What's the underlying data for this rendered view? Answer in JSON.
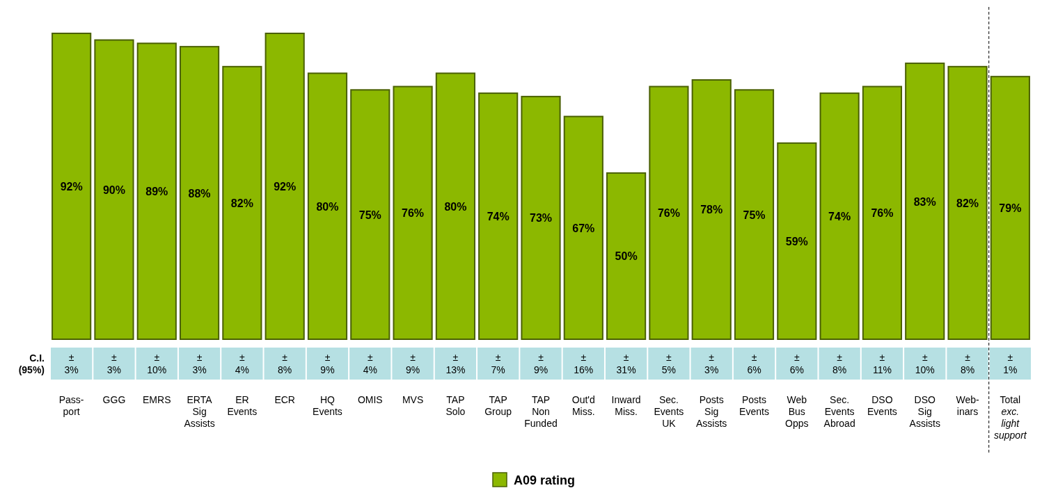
{
  "chart_data": {
    "type": "bar",
    "categories": [
      "Pass-\nport",
      "GGG",
      "EMRS",
      "ERTA\nSig\nAssists",
      "ER\nEvents",
      "ECR",
      "HQ\nEvents",
      "OMIS",
      "MVS",
      "TAP\nSolo",
      "TAP\nGroup",
      "TAP\nNon\nFunded",
      "Out'd\nMiss.",
      "Inward\nMiss.",
      "Sec.\nEvents\nUK",
      "Posts\nSig\nAssists",
      "Posts\nEvents",
      "Web\nBus\nOpps",
      "Sec.\nEvents\nAbroad",
      "DSO\nEvents",
      "DSO\nSig\nAssists",
      "Web-\ninars",
      "Total\nexc.\nlight\nsupport"
    ],
    "series": [
      {
        "name": "A09 rating",
        "color": "#8cb800",
        "values": [
          92,
          90,
          89,
          88,
          82,
          92,
          80,
          75,
          76,
          80,
          74,
          73,
          67,
          50,
          76,
          78,
          75,
          59,
          74,
          76,
          83,
          82,
          79
        ],
        "value_labels": [
          "92%",
          "90%",
          "89%",
          "88%",
          "82%",
          "92%",
          "80%",
          "75%",
          "76%",
          "80%",
          "74%",
          "73%",
          "67%",
          "50%",
          "76%",
          "78%",
          "75%",
          "59%",
          "74%",
          "76%",
          "83%",
          "82%",
          "79%"
        ]
      }
    ],
    "tick_labels": "x",
    "legend": "bottom",
    "annotations": [
      "C.I.\n(95%)",
      "±\n3%",
      "±\n3%",
      "±\n10%",
      "±\n3%",
      "±\n4%",
      "±\n8%",
      "±\n9%",
      "±\n4%",
      "±\n9%",
      "±\n13%",
      "±\n7%",
      "±\n9%",
      "±\n16%",
      "±\n31%",
      "±\n5%",
      "±\n3%",
      "±\n6%",
      "±\n6%",
      "±\n8%",
      "±\n11%",
      "±\n10%",
      "±\n8%",
      "±\n1%"
    ]
  }
}
